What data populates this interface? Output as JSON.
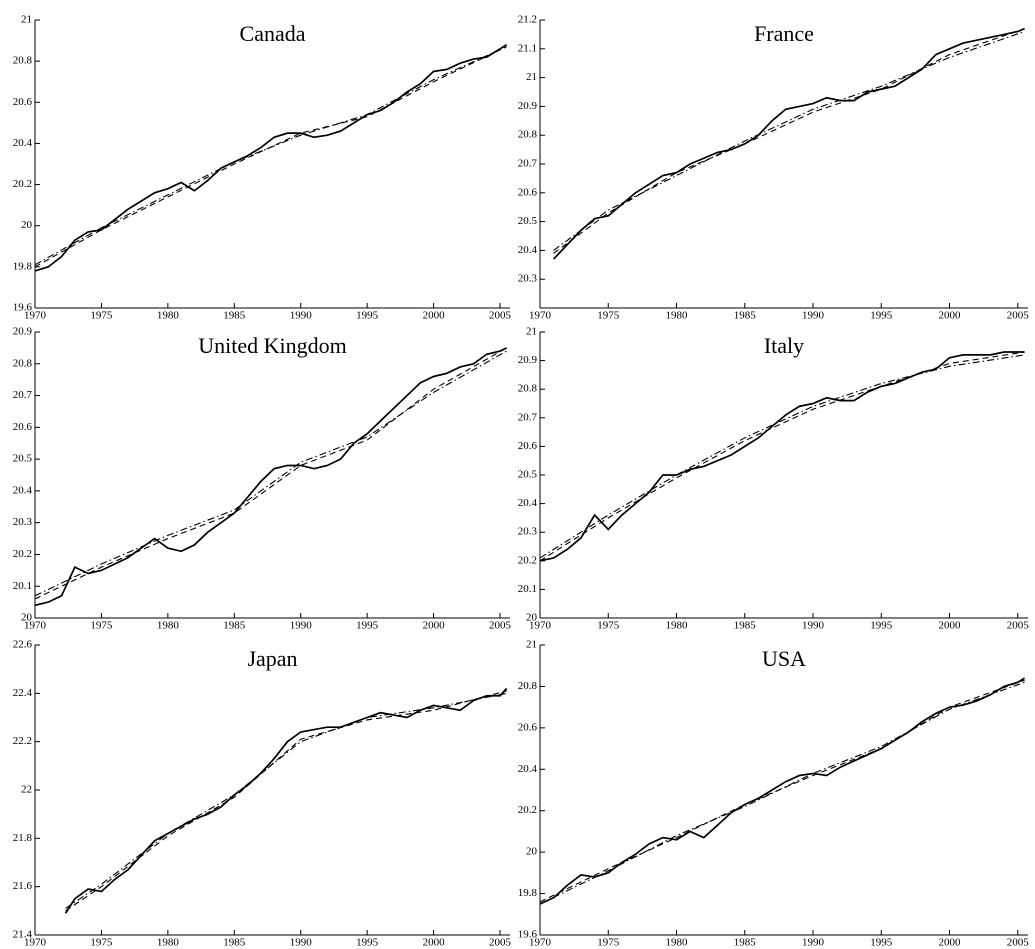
{
  "chart_data": [
    {
      "type": "line",
      "title": "Canada",
      "xlim": [
        1970,
        2005.75
      ],
      "xticks": [
        1970,
        1975,
        1980,
        1985,
        1990,
        1995,
        2000,
        2005
      ],
      "ylim": [
        19.6,
        21
      ],
      "yticks": [
        19.6,
        19.8,
        20,
        20.2,
        20.4,
        20.6,
        20.8,
        21
      ],
      "series": [
        {
          "color": "#000000",
          "linestyle": "solid",
          "x": [
            1970,
            1971,
            1972,
            1973,
            1974,
            1975,
            1976,
            1977,
            1978,
            1979,
            1980,
            1981,
            1982,
            1983,
            1984,
            1985,
            1986,
            1987,
            1988,
            1989,
            1990,
            1991,
            1992,
            1993,
            1994,
            1995,
            1996,
            1997,
            1998,
            1999,
            2000,
            2001,
            2002,
            2003,
            2004,
            2005,
            2005.5
          ],
          "values": [
            19.78,
            19.8,
            19.85,
            19.93,
            19.97,
            19.98,
            20.03,
            20.08,
            20.12,
            20.16,
            20.18,
            20.21,
            20.17,
            20.22,
            20.28,
            20.31,
            20.34,
            20.38,
            20.43,
            20.45,
            20.45,
            20.43,
            20.44,
            20.46,
            20.5,
            20.54,
            20.56,
            20.6,
            20.65,
            20.69,
            20.75,
            20.76,
            20.79,
            20.81,
            20.82,
            20.86,
            20.88
          ]
        },
        {
          "color": "#000000",
          "linestyle": "dashed",
          "x": [
            1970,
            1975,
            1980,
            1985,
            1990,
            1995,
            2000,
            2005.5
          ],
          "values": [
            19.8,
            19.98,
            20.14,
            20.3,
            20.45,
            20.53,
            20.7,
            20.87
          ]
        },
        {
          "color": "#000000",
          "linestyle": "dashdot",
          "x": [
            1970,
            1975,
            1980,
            1985,
            1990,
            1995,
            2000,
            2005.5
          ],
          "values": [
            19.81,
            19.99,
            20.15,
            20.31,
            20.44,
            20.54,
            20.71,
            20.87
          ]
        }
      ]
    },
    {
      "type": "line",
      "title": "France",
      "xlim": [
        1970,
        2005.75
      ],
      "xticks": [
        1970,
        1975,
        1980,
        1985,
        1990,
        1995,
        2000,
        2005
      ],
      "ylim": [
        20.2,
        21.2
      ],
      "yticks": [
        20.3,
        20.4,
        20.5,
        20.6,
        20.7,
        20.8,
        20.9,
        21,
        21.1,
        21.2
      ],
      "series": [
        {
          "color": "#000000",
          "linestyle": "solid",
          "x": [
            1971,
            1972,
            1973,
            1974,
            1975,
            1976,
            1977,
            1978,
            1979,
            1980,
            1981,
            1982,
            1983,
            1984,
            1985,
            1986,
            1987,
            1988,
            1989,
            1990,
            1991,
            1992,
            1993,
            1994,
            1995,
            1996,
            1997,
            1998,
            1999,
            2000,
            2001,
            2002,
            2003,
            2004,
            2005,
            2005.5
          ],
          "values": [
            20.37,
            20.42,
            20.47,
            20.51,
            20.52,
            20.56,
            20.6,
            20.63,
            20.66,
            20.67,
            20.7,
            20.72,
            20.74,
            20.75,
            20.77,
            20.8,
            20.85,
            20.89,
            20.9,
            20.91,
            20.93,
            20.92,
            20.92,
            20.95,
            20.96,
            20.97,
            21.0,
            21.03,
            21.08,
            21.1,
            21.12,
            21.13,
            21.14,
            21.15,
            21.16,
            21.17
          ]
        },
        {
          "color": "#000000",
          "linestyle": "dashed",
          "x": [
            1971,
            1975,
            1980,
            1985,
            1990,
            1995,
            2000,
            2005.5
          ],
          "values": [
            20.39,
            20.53,
            20.67,
            20.77,
            20.88,
            20.96,
            21.08,
            21.17
          ]
        },
        {
          "color": "#000000",
          "linestyle": "dashdot",
          "x": [
            1971,
            1975,
            1980,
            1985,
            1990,
            1995,
            2000,
            2005.5
          ],
          "values": [
            20.4,
            20.54,
            20.66,
            20.78,
            20.89,
            20.97,
            21.07,
            21.16
          ]
        }
      ]
    },
    {
      "type": "line",
      "title": "United Kingdom",
      "xlim": [
        1970,
        2005.75
      ],
      "xticks": [
        1970,
        1975,
        1980,
        1985,
        1990,
        1995,
        2000,
        2005
      ],
      "ylim": [
        20,
        20.9
      ],
      "yticks": [
        20,
        20.1,
        20.2,
        20.3,
        20.4,
        20.5,
        20.6,
        20.7,
        20.8,
        20.9
      ],
      "series": [
        {
          "color": "#000000",
          "linestyle": "solid",
          "x": [
            1970,
            1971,
            1972,
            1973,
            1974,
            1975,
            1976,
            1977,
            1978,
            1979,
            1980,
            1981,
            1982,
            1983,
            1984,
            1985,
            1986,
            1987,
            1988,
            1989,
            1990,
            1991,
            1992,
            1993,
            1994,
            1995,
            1996,
            1997,
            1998,
            1999,
            2000,
            2001,
            2002,
            2003,
            2004,
            2005,
            2005.5
          ],
          "values": [
            20.04,
            20.05,
            20.07,
            20.16,
            20.14,
            20.15,
            20.17,
            20.19,
            20.22,
            20.25,
            20.22,
            20.21,
            20.23,
            20.27,
            20.3,
            20.33,
            20.38,
            20.43,
            20.47,
            20.48,
            20.48,
            20.47,
            20.48,
            20.5,
            20.55,
            20.58,
            20.62,
            20.66,
            20.7,
            20.74,
            20.76,
            20.77,
            20.79,
            20.8,
            20.83,
            20.84,
            20.85
          ]
        },
        {
          "color": "#000000",
          "linestyle": "dashed",
          "x": [
            1970,
            1975,
            1980,
            1985,
            1990,
            1995,
            2000,
            2005.5
          ],
          "values": [
            20.06,
            20.16,
            20.25,
            20.33,
            20.48,
            20.56,
            20.72,
            20.85
          ]
        },
        {
          "color": "#000000",
          "linestyle": "dashdot",
          "x": [
            1970,
            1975,
            1980,
            1985,
            1990,
            1995,
            2000,
            2005.5
          ],
          "values": [
            20.07,
            20.17,
            20.26,
            20.34,
            20.49,
            20.57,
            20.71,
            20.84
          ]
        }
      ]
    },
    {
      "type": "line",
      "title": "Italy",
      "xlim": [
        1970,
        2005.75
      ],
      "xticks": [
        1970,
        1975,
        1980,
        1985,
        1990,
        1995,
        2000,
        2005
      ],
      "ylim": [
        20,
        21
      ],
      "yticks": [
        20,
        20.1,
        20.2,
        20.3,
        20.4,
        20.5,
        20.6,
        20.7,
        20.8,
        20.9,
        21
      ],
      "series": [
        {
          "color": "#000000",
          "linestyle": "solid",
          "x": [
            1970,
            1971,
            1972,
            1973,
            1974,
            1975,
            1976,
            1977,
            1978,
            1979,
            1980,
            1981,
            1982,
            1983,
            1984,
            1985,
            1986,
            1987,
            1988,
            1989,
            1990,
            1991,
            1992,
            1993,
            1994,
            1995,
            1996,
            1997,
            1998,
            1999,
            2000,
            2001,
            2002,
            2003,
            2004,
            2005,
            2005.5
          ],
          "values": [
            20.2,
            20.21,
            20.24,
            20.28,
            20.36,
            20.31,
            20.36,
            20.4,
            20.44,
            20.5,
            20.5,
            20.52,
            20.53,
            20.55,
            20.57,
            20.6,
            20.63,
            20.67,
            20.71,
            20.74,
            20.75,
            20.77,
            20.76,
            20.76,
            20.79,
            20.81,
            20.82,
            20.84,
            20.86,
            20.87,
            20.91,
            20.92,
            20.92,
            20.92,
            20.93,
            20.93,
            20.93
          ]
        },
        {
          "color": "#000000",
          "linestyle": "dashed",
          "x": [
            1970,
            1975,
            1980,
            1985,
            1990,
            1995,
            2000,
            2005.5
          ],
          "values": [
            20.2,
            20.35,
            20.49,
            20.62,
            20.73,
            20.81,
            20.89,
            20.93
          ]
        },
        {
          "color": "#000000",
          "linestyle": "dashdot",
          "x": [
            1970,
            1975,
            1980,
            1985,
            1990,
            1995,
            2000,
            2005.5
          ],
          "values": [
            20.21,
            20.36,
            20.5,
            20.63,
            20.74,
            20.82,
            20.88,
            20.92
          ]
        }
      ]
    },
    {
      "type": "line",
      "title": "Japan",
      "xlim": [
        1970,
        2005.75
      ],
      "xticks": [
        1970,
        1975,
        1980,
        1985,
        1990,
        1995,
        2000,
        2005
      ],
      "ylim": [
        21.4,
        22.6
      ],
      "yticks": [
        21.4,
        21.6,
        21.8,
        22,
        22.2,
        22.4,
        22.6
      ],
      "series": [
        {
          "color": "#000000",
          "linestyle": "solid",
          "x": [
            1972.3,
            1973,
            1974,
            1975,
            1976,
            1977,
            1978,
            1979,
            1980,
            1981,
            1982,
            1983,
            1984,
            1985,
            1986,
            1987,
            1988,
            1989,
            1990,
            1991,
            1992,
            1993,
            1994,
            1995,
            1996,
            1997,
            1998,
            1999,
            2000,
            2001,
            2002,
            2003,
            2004,
            2005,
            2005.5
          ],
          "values": [
            21.49,
            21.55,
            21.59,
            21.58,
            21.63,
            21.67,
            21.73,
            21.79,
            21.82,
            21.85,
            21.88,
            21.9,
            21.93,
            21.98,
            22.02,
            22.07,
            22.13,
            22.2,
            22.24,
            22.25,
            22.26,
            22.26,
            22.28,
            22.3,
            22.32,
            22.31,
            22.3,
            22.33,
            22.35,
            22.34,
            22.33,
            22.37,
            22.39,
            22.39,
            22.42
          ]
        },
        {
          "color": "#000000",
          "linestyle": "dashed",
          "x": [
            1972.3,
            1975,
            1980,
            1985,
            1990,
            1995,
            2000,
            2005.5
          ],
          "values": [
            21.5,
            21.6,
            21.81,
            21.97,
            22.21,
            22.29,
            22.33,
            22.41
          ]
        },
        {
          "color": "#000000",
          "linestyle": "dashdot",
          "x": [
            1972.3,
            1975,
            1980,
            1985,
            1990,
            1995,
            2000,
            2005.5
          ],
          "values": [
            21.51,
            21.61,
            21.82,
            21.98,
            22.2,
            22.3,
            22.34,
            22.4
          ]
        }
      ]
    },
    {
      "type": "line",
      "title": "USA",
      "xlim": [
        1970,
        2005.75
      ],
      "xticks": [
        1970,
        1975,
        1980,
        1985,
        1990,
        1995,
        2000,
        2005
      ],
      "ylim": [
        19.6,
        21
      ],
      "yticks": [
        19.6,
        19.8,
        20,
        20.2,
        20.4,
        20.6,
        20.8,
        21
      ],
      "series": [
        {
          "color": "#000000",
          "linestyle": "solid",
          "x": [
            1970,
            1971,
            1972,
            1973,
            1974,
            1975,
            1976,
            1977,
            1978,
            1979,
            1980,
            1981,
            1982,
            1983,
            1984,
            1985,
            1986,
            1987,
            1988,
            1989,
            1990,
            1991,
            1992,
            1993,
            1994,
            1995,
            1996,
            1997,
            1998,
            1999,
            2000,
            2001,
            2002,
            2003,
            2004,
            2005,
            2005.5
          ],
          "values": [
            19.75,
            19.78,
            19.84,
            19.89,
            19.88,
            19.9,
            19.95,
            19.99,
            20.04,
            20.07,
            20.06,
            20.1,
            20.07,
            20.13,
            20.19,
            20.23,
            20.26,
            20.3,
            20.34,
            20.37,
            20.38,
            20.37,
            20.41,
            20.44,
            20.47,
            20.5,
            20.54,
            20.58,
            20.63,
            20.67,
            20.7,
            20.71,
            20.73,
            20.76,
            20.8,
            20.82,
            20.84
          ]
        },
        {
          "color": "#000000",
          "linestyle": "dashed",
          "x": [
            1970,
            1975,
            1980,
            1985,
            1990,
            1995,
            2000,
            2005.5
          ],
          "values": [
            19.76,
            19.92,
            20.07,
            20.23,
            20.37,
            20.5,
            20.7,
            20.83
          ]
        },
        {
          "color": "#000000",
          "linestyle": "dashdot",
          "x": [
            1970,
            1975,
            1980,
            1985,
            1990,
            1995,
            2000,
            2005.5
          ],
          "values": [
            19.75,
            19.91,
            20.08,
            20.22,
            20.38,
            20.51,
            20.69,
            20.82
          ]
        }
      ]
    }
  ]
}
